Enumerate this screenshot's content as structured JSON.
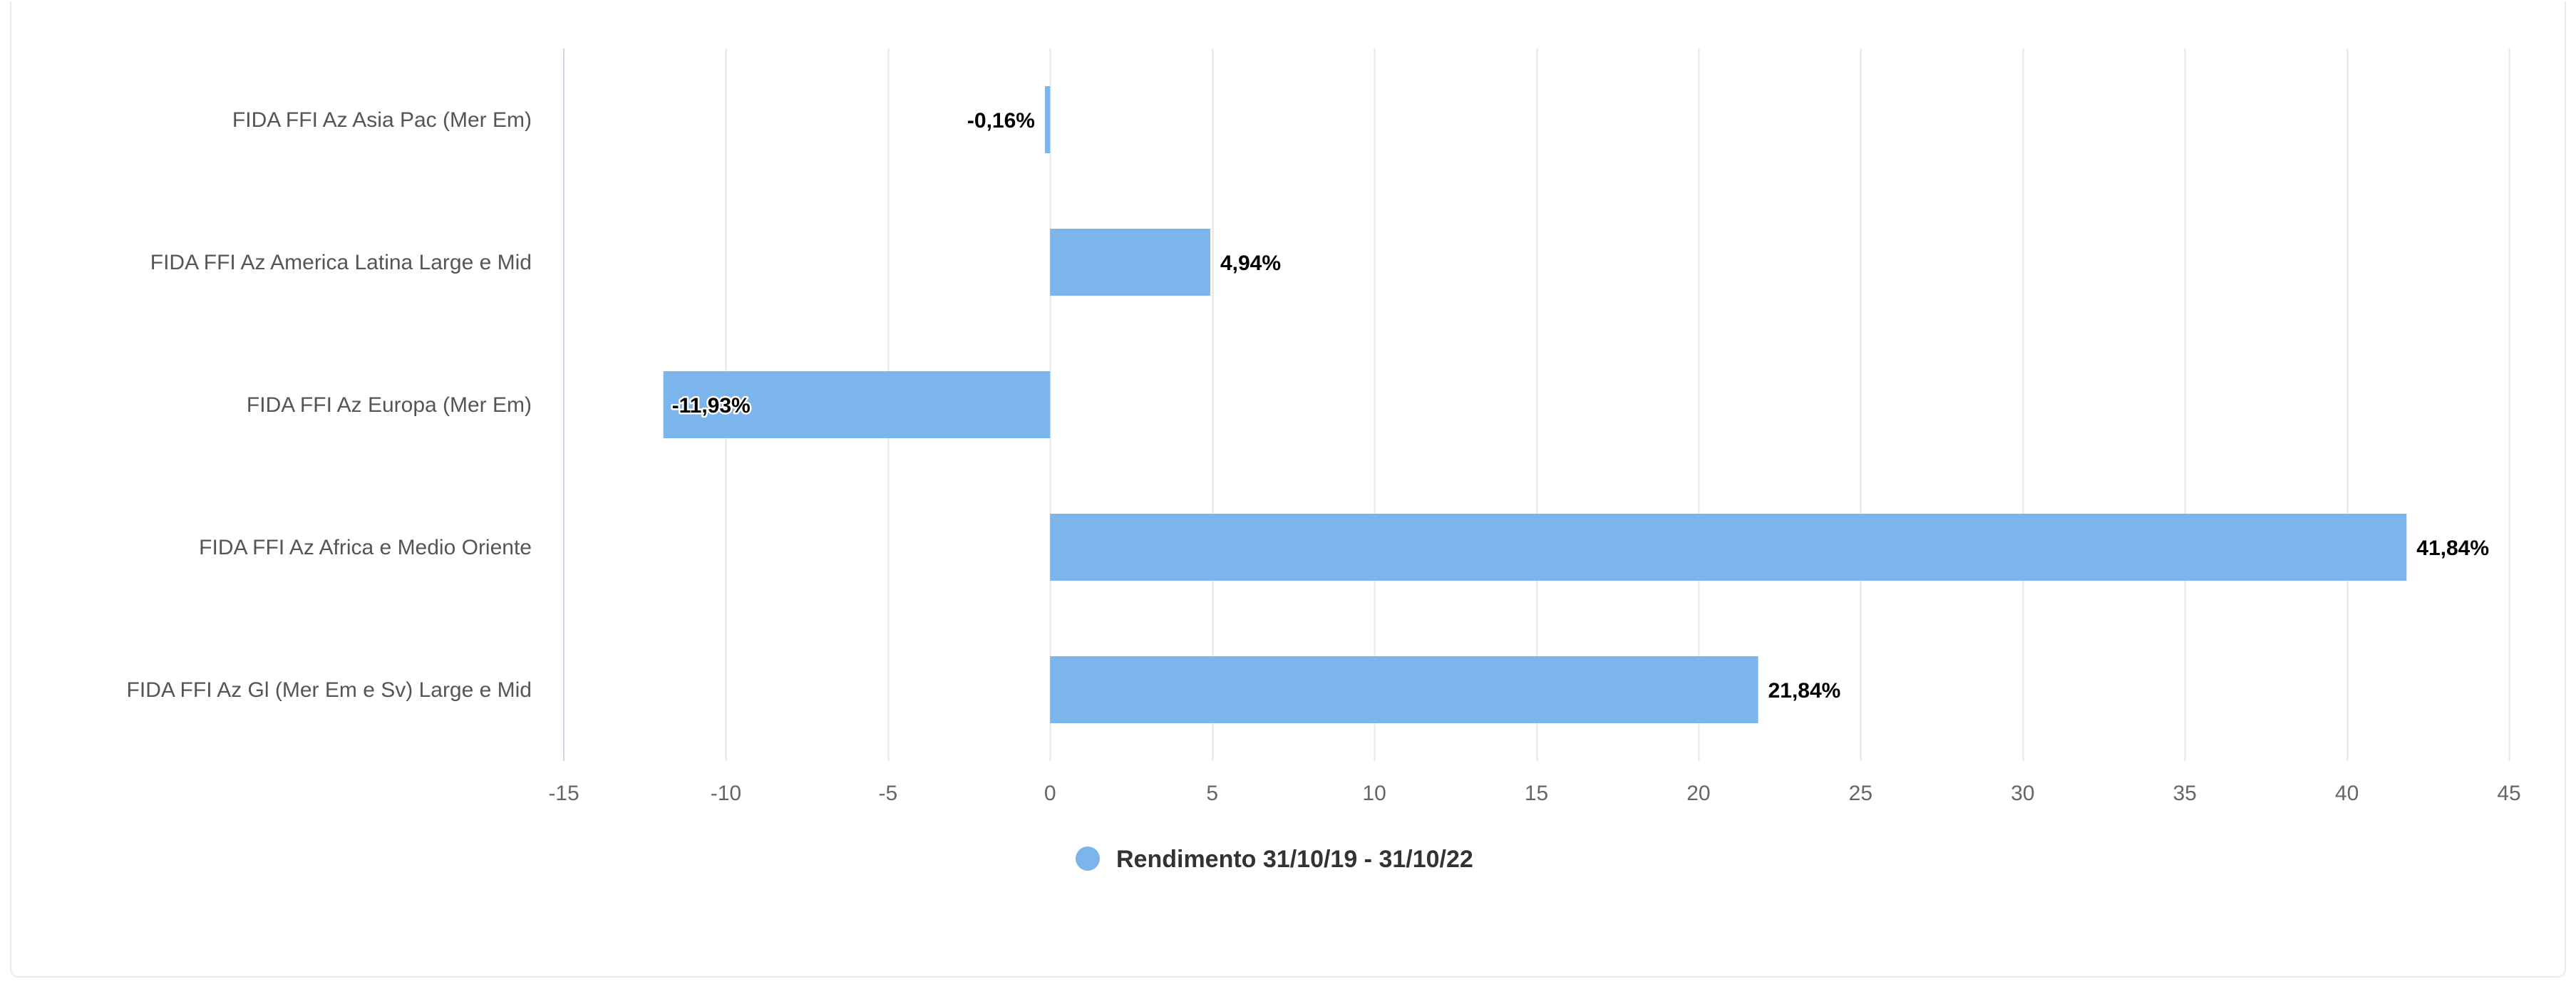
{
  "chart_data": {
    "type": "bar",
    "orientation": "horizontal",
    "categories": [
      "FIDA FFI Az Asia Pac (Mer Em)",
      "FIDA FFI Az America Latina Large e Mid",
      "FIDA FFI Az Europa (Mer Em)",
      "FIDA FFI Az Africa e Medio Oriente",
      "FIDA FFI Az Gl (Mer Em e Sv) Large e Mid"
    ],
    "series": [
      {
        "name": "Rendimento 31/10/19 - 31/10/22",
        "values": [
          -0.16,
          4.94,
          -11.93,
          41.84,
          21.84
        ],
        "data_labels": [
          "-0,16%",
          "4,94%",
          "-11,93%",
          "41,84%",
          "21,84%"
        ],
        "color": "#7cb5ec"
      }
    ],
    "xlim": [
      -15,
      45
    ],
    "x_ticks": [
      -15,
      -10,
      -5,
      0,
      5,
      10,
      15,
      20,
      25,
      30,
      35,
      40,
      45
    ],
    "x_tick_labels": [
      "-15",
      "-10",
      "-5",
      "0",
      "5",
      "10",
      "15",
      "20",
      "25",
      "30",
      "35",
      "40",
      "45"
    ],
    "grid": "vertical",
    "grid_color": "#e6e6e6",
    "legend": "bottom-center",
    "title": "",
    "xlabel": "",
    "ylabel": ""
  }
}
